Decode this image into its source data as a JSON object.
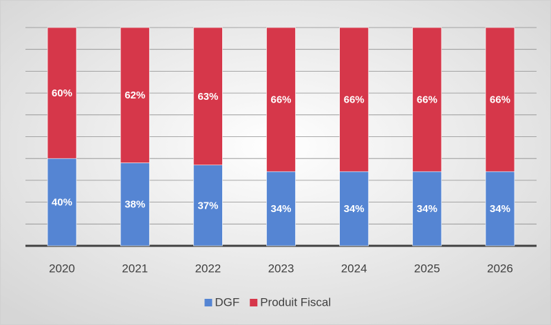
{
  "chart_data": {
    "type": "stacked_bar",
    "categories": [
      "2020",
      "2021",
      "2022",
      "2023",
      "2024",
      "2025",
      "2026"
    ],
    "series": [
      {
        "name": "DGF",
        "color": "#5585d3",
        "values": [
          40,
          38,
          37,
          34,
          34,
          34,
          34
        ],
        "value_labels": [
          "40%",
          "38%",
          "37%",
          "34%",
          "34%",
          "34%",
          "34%"
        ]
      },
      {
        "name": "Produit Fiscal",
        "color": "#d6374a",
        "values": [
          60,
          62,
          63,
          66,
          66,
          66,
          66
        ],
        "value_labels": [
          "60%",
          "62%",
          "63%",
          "66%",
          "66%",
          "66%",
          "66%"
        ]
      }
    ],
    "ylim": [
      0,
      100
    ],
    "yticks": [
      0,
      10,
      20,
      30,
      40,
      50,
      60,
      70,
      80,
      90,
      100
    ],
    "grid": true,
    "legend": "bottom"
  }
}
